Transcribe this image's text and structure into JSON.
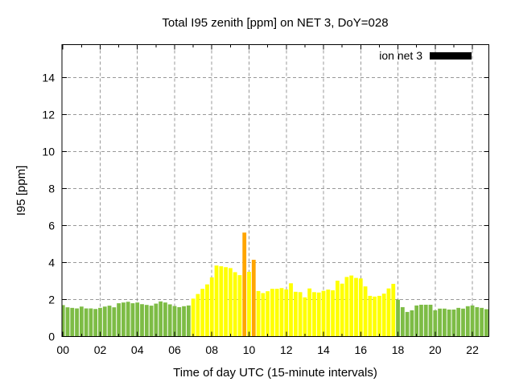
{
  "chart_data": {
    "type": "bar",
    "title": "Total I95 zenith [ppm] on NET 3, DoY=028",
    "xlabel": "Time of day UTC (15-minute intervals)",
    "ylabel": "I95 [ppm]",
    "legend": [
      {
        "label": "ion net 3",
        "swatch_color": "#000000",
        "position": "top-right"
      }
    ],
    "grid": true,
    "interval_minutes": 15,
    "xtick_hours": [
      0,
      2,
      4,
      6,
      8,
      10,
      12,
      14,
      16,
      18,
      20,
      22
    ],
    "xtick_labels": [
      "00",
      "02",
      "04",
      "06",
      "08",
      "10",
      "12",
      "14",
      "16",
      "18",
      "20",
      "22"
    ],
    "ytick_values": [
      0,
      2,
      4,
      6,
      8,
      10,
      12,
      14
    ],
    "ylim": [
      0,
      15.8
    ],
    "xlim_hours": [
      -0.09,
      22.9
    ],
    "colors": {
      "g": "#7dbc45",
      "y": "#ffff00",
      "o": "#ffa500",
      "grid": "#999999",
      "frame": "#000000",
      "background": "#ffffff"
    },
    "color_sequence": "ggggggggggggggggggggggggggggyyyyyyyyyyyoyoyyyyyyyyyyyyyyyyyyyyyyyyyyyyyygggggggggggggggggggg",
    "times": [
      "00:00",
      "00:15",
      "00:30",
      "00:45",
      "01:00",
      "01:15",
      "01:30",
      "01:45",
      "02:00",
      "02:15",
      "02:30",
      "02:45",
      "03:00",
      "03:15",
      "03:30",
      "03:45",
      "04:00",
      "04:15",
      "04:30",
      "04:45",
      "05:00",
      "05:15",
      "05:30",
      "05:45",
      "06:00",
      "06:15",
      "06:30",
      "06:45",
      "07:00",
      "07:15",
      "07:30",
      "07:45",
      "08:00",
      "08:15",
      "08:30",
      "08:45",
      "09:00",
      "09:15",
      "09:30",
      "09:45",
      "10:00",
      "10:15",
      "10:30",
      "10:45",
      "11:00",
      "11:15",
      "11:30",
      "11:45",
      "12:00",
      "12:15",
      "12:30",
      "12:45",
      "13:00",
      "13:15",
      "13:30",
      "13:45",
      "14:00",
      "14:15",
      "14:30",
      "14:45",
      "15:00",
      "15:15",
      "15:30",
      "15:45",
      "16:00",
      "16:15",
      "16:30",
      "16:45",
      "17:00",
      "17:15",
      "17:30",
      "17:45",
      "18:00",
      "18:15",
      "18:30",
      "18:45",
      "19:00",
      "19:15",
      "19:30",
      "19:45",
      "20:00",
      "20:15",
      "20:30",
      "20:45",
      "21:00",
      "21:15",
      "21:30",
      "21:45",
      "22:00",
      "22:15",
      "22:30",
      "22:45"
    ],
    "values": [
      1.7,
      1.58,
      1.55,
      1.52,
      1.62,
      1.52,
      1.52,
      1.49,
      1.55,
      1.62,
      1.67,
      1.58,
      1.8,
      1.84,
      1.88,
      1.8,
      1.84,
      1.75,
      1.71,
      1.67,
      1.78,
      1.9,
      1.84,
      1.74,
      1.65,
      1.59,
      1.64,
      1.68,
      2.05,
      2.3,
      2.58,
      2.82,
      3.2,
      3.84,
      3.8,
      3.75,
      3.7,
      3.48,
      3.32,
      5.62,
      3.5,
      4.15,
      2.46,
      2.35,
      2.45,
      2.58,
      2.58,
      2.62,
      2.55,
      2.88,
      2.42,
      2.4,
      2.12,
      2.6,
      2.4,
      2.38,
      2.47,
      2.54,
      2.5,
      3.02,
      2.86,
      3.22,
      3.3,
      3.17,
      3.14,
      2.71,
      2.2,
      2.16,
      2.2,
      2.32,
      2.6,
      2.85,
      2.0,
      1.59,
      1.33,
      1.42,
      1.68,
      1.72,
      1.72,
      1.72,
      1.42,
      1.51,
      1.51,
      1.46,
      1.46,
      1.55,
      1.51,
      1.64,
      1.68,
      1.59,
      1.55,
      1.48
    ]
  }
}
